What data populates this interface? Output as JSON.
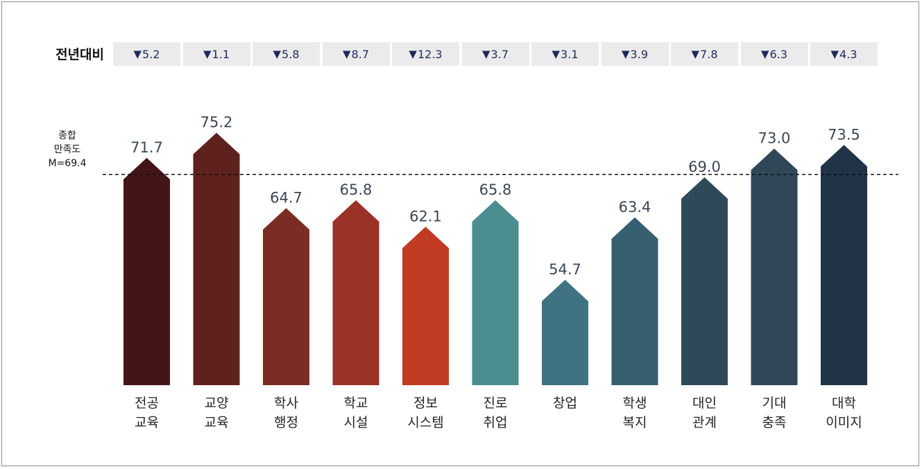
{
  "change_row": {
    "label": "전년대비",
    "values": [
      "5.2",
      "1.1",
      "5.8",
      "8.7",
      "12.3",
      "3.7",
      "3.1",
      "3.9",
      "7.8",
      "6.3",
      "4.3"
    ],
    "direction_symbol": "▼"
  },
  "average": {
    "label_line1": "종합",
    "label_line2": "만족도",
    "label_line3": "M=69.4",
    "value": 69.4
  },
  "chart_data": {
    "type": "bar",
    "categories": [
      [
        "전공",
        "교육"
      ],
      [
        "교양",
        "교육"
      ],
      [
        "학사",
        "행정"
      ],
      [
        "학교",
        "시설"
      ],
      [
        "정보",
        "시스템"
      ],
      [
        "진로",
        "취업"
      ],
      [
        "창업"
      ],
      [
        "학생",
        "복지"
      ],
      [
        "대인",
        "관계"
      ],
      [
        "기대",
        "충족"
      ],
      [
        "대학",
        "이미지"
      ]
    ],
    "values": [
      71.7,
      75.2,
      64.7,
      65.8,
      62.1,
      65.8,
      54.7,
      63.4,
      69.0,
      73.0,
      73.5
    ],
    "value_labels": [
      "71.7",
      "75.2",
      "64.7",
      "65.8",
      "62.1",
      "65.8",
      "54.7",
      "63.4",
      "69.0",
      "73.0",
      "73.5"
    ],
    "reference_line": 69.4,
    "colors": [
      "#431518",
      "#5e211d",
      "#7b2d24",
      "#9a3227",
      "#c13b22",
      "#4a8e90",
      "#3f7282",
      "#365f70",
      "#2e4a59",
      "#2f4757",
      "#213346"
    ],
    "grid": false,
    "legend": "none"
  }
}
